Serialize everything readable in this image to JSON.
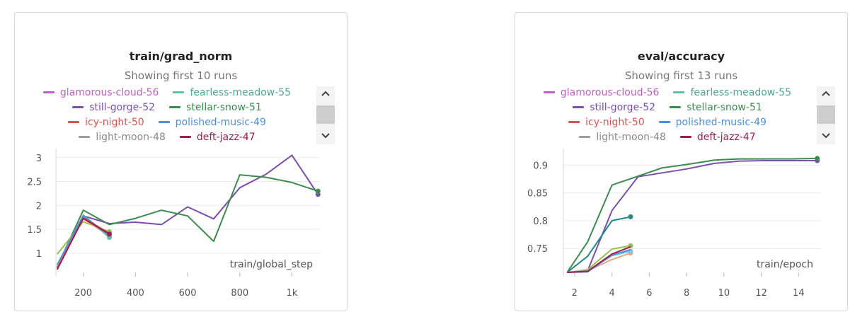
{
  "panels": [
    {
      "title": "train/grad_norm",
      "subtitle": "Showing first 10 runs",
      "legend_rows": [
        [
          {
            "name": "glamorous-cloud-56",
            "color": "#c25fc4"
          },
          {
            "name": "fearless-meadow-55",
            "color": "#5fbfa9"
          }
        ],
        [
          {
            "name": "still-gorge-52",
            "color": "#7b4fb0"
          },
          {
            "name": "stellar-snow-51",
            "color": "#3a8e4c"
          }
        ],
        [
          {
            "name": "icy-night-50",
            "color": "#d9534f"
          },
          {
            "name": "polished-music-49",
            "color": "#4a90e2"
          }
        ],
        [
          {
            "name": "light-moon-48",
            "color": "#9e9e9e"
          },
          {
            "name": "deft-jazz-47",
            "color": "#9c1f4e"
          }
        ]
      ]
    },
    {
      "title": "eval/accuracy",
      "subtitle": "Showing first 13 runs",
      "legend_rows": [
        [
          {
            "name": "glamorous-cloud-56",
            "color": "#c25fc4"
          },
          {
            "name": "fearless-meadow-55",
            "color": "#5fbfa9"
          }
        ],
        [
          {
            "name": "still-gorge-52",
            "color": "#7b4fb0"
          },
          {
            "name": "stellar-snow-51",
            "color": "#3a8e4c"
          }
        ],
        [
          {
            "name": "icy-night-50",
            "color": "#d9534f"
          },
          {
            "name": "polished-music-49",
            "color": "#4a90e2"
          }
        ],
        [
          {
            "name": "light-moon-48",
            "color": "#9e9e9e"
          },
          {
            "name": "deft-jazz-47",
            "color": "#9c1f4e"
          }
        ]
      ]
    }
  ],
  "scroll_icons": {
    "up": "chevron-up-icon",
    "down": "chevron-down-icon",
    "up_glyph": "^",
    "down_glyph": "v"
  },
  "chart_data": [
    {
      "type": "line",
      "title": "train/grad_norm",
      "xlabel": "train/global_step",
      "ylabel": "",
      "xlim": [
        95,
        1110
      ],
      "ylim": [
        0.6,
        3.1
      ],
      "xticks": [
        {
          "value": 200,
          "label": "200"
        },
        {
          "value": 400,
          "label": "400"
        },
        {
          "value": 600,
          "label": "600"
        },
        {
          "value": 800,
          "label": "800"
        },
        {
          "value": 1000,
          "label": "1k"
        }
      ],
      "yticks": [
        {
          "value": 1,
          "label": "1"
        },
        {
          "value": 1.5,
          "label": "1.5"
        },
        {
          "value": 2,
          "label": "2"
        },
        {
          "value": 2.5,
          "label": "2.5"
        },
        {
          "value": 3,
          "label": "3"
        }
      ],
      "grid": true,
      "series": [
        {
          "name": "still-gorge-52",
          "color": "#7b4fb0",
          "end_marker": true,
          "x": [
            100,
            200,
            300,
            400,
            500,
            600,
            700,
            800,
            900,
            1000,
            1100
          ],
          "y": [
            0.7,
            1.78,
            1.62,
            1.65,
            1.6,
            1.97,
            1.72,
            2.37,
            2.65,
            3.05,
            2.23
          ]
        },
        {
          "name": "stellar-snow-51",
          "color": "#3a8e4c",
          "end_marker": true,
          "x": [
            100,
            200,
            300,
            400,
            500,
            600,
            700,
            800,
            900,
            1000,
            1100
          ],
          "y": [
            0.72,
            1.9,
            1.6,
            1.73,
            1.9,
            1.78,
            1.25,
            2.64,
            2.59,
            2.48,
            2.3
          ]
        },
        {
          "color": "#9bbf4f",
          "end_marker": true,
          "x": [
            100,
            200,
            300
          ],
          "y": [
            0.98,
            1.66,
            1.45
          ]
        },
        {
          "color": "#e8a87c",
          "end_marker": true,
          "x": [
            100,
            200,
            300
          ],
          "y": [
            0.74,
            1.72,
            1.36
          ]
        },
        {
          "color": "#5fbfa9",
          "end_marker": true,
          "x": [
            100,
            200,
            300
          ],
          "y": [
            0.76,
            1.8,
            1.33
          ]
        },
        {
          "color": "#4a90e2",
          "end_marker": false,
          "x": [
            100,
            200,
            300
          ],
          "y": [
            0.76,
            1.78,
            1.38
          ]
        },
        {
          "color": "#d9534f",
          "end_marker": false,
          "x": [
            100,
            200,
            300
          ],
          "y": [
            0.68,
            1.74,
            1.42
          ]
        },
        {
          "color": "#9c1f4e",
          "end_marker": true,
          "x": [
            100,
            200,
            300
          ],
          "y": [
            0.66,
            1.73,
            1.4
          ]
        }
      ]
    },
    {
      "type": "line",
      "title": "eval/accuracy",
      "xlabel": "train/epoch",
      "ylabel": "",
      "xlim": [
        1.4,
        15.2
      ],
      "ylim": [
        0.707,
        0.922
      ],
      "xticks": [
        {
          "value": 2,
          "label": "2"
        },
        {
          "value": 4,
          "label": "4"
        },
        {
          "value": 6,
          "label": "6"
        },
        {
          "value": 8,
          "label": "8"
        },
        {
          "value": 10,
          "label": "10"
        },
        {
          "value": 12,
          "label": "12"
        },
        {
          "value": 14,
          "label": "14"
        }
      ],
      "yticks": [
        {
          "value": 0.75,
          "label": "0.75"
        },
        {
          "value": 0.8,
          "label": "0.8"
        },
        {
          "value": 0.85,
          "label": "0.85"
        },
        {
          "value": 0.9,
          "label": "0.9"
        }
      ],
      "grid": true,
      "series": [
        {
          "name": "still-gorge-52",
          "color": "#7b4fb0",
          "end_marker": true,
          "x": [
            1.6,
            2.7,
            4.0,
            5.4,
            6.7,
            8.0,
            9.5,
            10.8,
            12.1,
            13.5,
            15.0
          ],
          "y": [
            0.707,
            0.71,
            0.818,
            0.879,
            0.886,
            0.893,
            0.903,
            0.907,
            0.908,
            0.908,
            0.908
          ]
        },
        {
          "name": "stellar-snow-51",
          "color": "#3a8e4c",
          "end_marker": true,
          "x": [
            1.6,
            2.7,
            4.0,
            5.4,
            6.7,
            8.0,
            9.5,
            10.8,
            12.1,
            13.5,
            15.0
          ],
          "y": [
            0.707,
            0.762,
            0.864,
            0.88,
            0.895,
            0.901,
            0.909,
            0.911,
            0.911,
            0.911,
            0.912
          ]
        },
        {
          "color": "#1f8a8a",
          "end_marker": true,
          "x": [
            1.6,
            2.7,
            4.0,
            5.0
          ],
          "y": [
            0.707,
            0.736,
            0.8,
            0.807
          ]
        },
        {
          "color": "#9bbf4f",
          "end_marker": true,
          "x": [
            1.6,
            2.7,
            4.0,
            5.0
          ],
          "y": [
            0.707,
            0.712,
            0.749,
            0.755
          ]
        },
        {
          "color": "#e8a87c",
          "end_marker": true,
          "x": [
            1.6,
            2.7,
            4.0,
            5.0
          ],
          "y": [
            0.707,
            0.71,
            0.73,
            0.742
          ]
        },
        {
          "color": "#7ec8e3",
          "end_marker": true,
          "x": [
            1.6,
            2.7,
            4.0,
            5.0
          ],
          "y": [
            0.707,
            0.71,
            0.737,
            0.745
          ]
        },
        {
          "color": "#4a90e2",
          "end_marker": false,
          "x": [
            1.6,
            2.7,
            4.0,
            5.0
          ],
          "y": [
            0.707,
            0.708,
            0.738,
            0.748
          ]
        },
        {
          "color": "#9c1f4e",
          "end_marker": false,
          "x": [
            1.6,
            2.7,
            4.0,
            5.0
          ],
          "y": [
            0.707,
            0.709,
            0.74,
            0.753
          ]
        }
      ]
    }
  ]
}
